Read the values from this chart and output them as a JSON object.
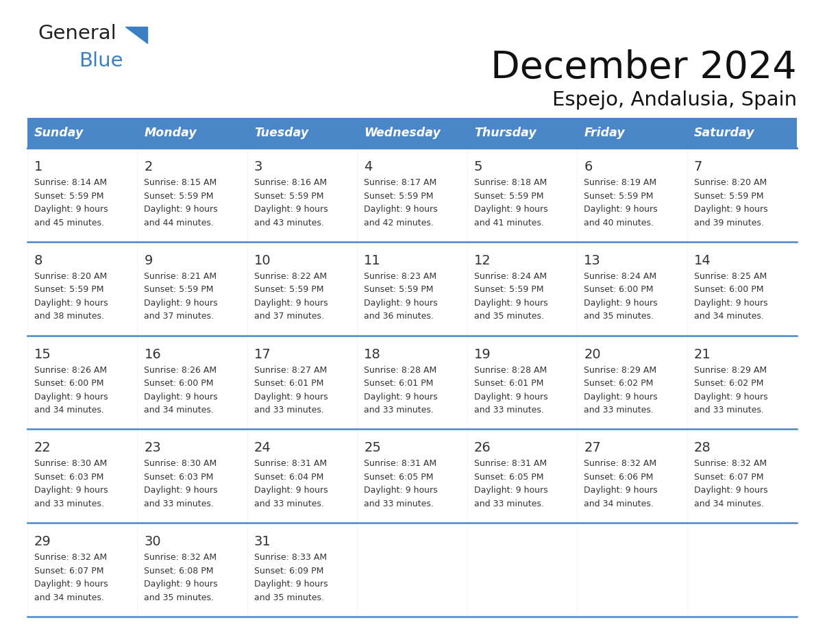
{
  "title": "December 2024",
  "subtitle": "Espejo, Andalusia, Spain",
  "header_color": "#4a86c8",
  "header_text_color": "#FFFFFF",
  "days_of_week": [
    "Sunday",
    "Monday",
    "Tuesday",
    "Wednesday",
    "Thursday",
    "Friday",
    "Saturday"
  ],
  "bg_color": "#FFFFFF",
  "cell_bg": "#f0f4f8",
  "grid_line_color": "#4a86c8",
  "text_color": "#333333",
  "calendar_data": [
    [
      {
        "day": 1,
        "sunrise": "8:14 AM",
        "sunset": "5:59 PM",
        "daylight": "9 hours",
        "daylight2": "and 45 minutes."
      },
      {
        "day": 2,
        "sunrise": "8:15 AM",
        "sunset": "5:59 PM",
        "daylight": "9 hours",
        "daylight2": "and 44 minutes."
      },
      {
        "day": 3,
        "sunrise": "8:16 AM",
        "sunset": "5:59 PM",
        "daylight": "9 hours",
        "daylight2": "and 43 minutes."
      },
      {
        "day": 4,
        "sunrise": "8:17 AM",
        "sunset": "5:59 PM",
        "daylight": "9 hours",
        "daylight2": "and 42 minutes."
      },
      {
        "day": 5,
        "sunrise": "8:18 AM",
        "sunset": "5:59 PM",
        "daylight": "9 hours",
        "daylight2": "and 41 minutes."
      },
      {
        "day": 6,
        "sunrise": "8:19 AM",
        "sunset": "5:59 PM",
        "daylight": "9 hours",
        "daylight2": "and 40 minutes."
      },
      {
        "day": 7,
        "sunrise": "8:20 AM",
        "sunset": "5:59 PM",
        "daylight": "9 hours",
        "daylight2": "and 39 minutes."
      }
    ],
    [
      {
        "day": 8,
        "sunrise": "8:20 AM",
        "sunset": "5:59 PM",
        "daylight": "9 hours",
        "daylight2": "and 38 minutes."
      },
      {
        "day": 9,
        "sunrise": "8:21 AM",
        "sunset": "5:59 PM",
        "daylight": "9 hours",
        "daylight2": "and 37 minutes."
      },
      {
        "day": 10,
        "sunrise": "8:22 AM",
        "sunset": "5:59 PM",
        "daylight": "9 hours",
        "daylight2": "and 37 minutes."
      },
      {
        "day": 11,
        "sunrise": "8:23 AM",
        "sunset": "5:59 PM",
        "daylight": "9 hours",
        "daylight2": "and 36 minutes."
      },
      {
        "day": 12,
        "sunrise": "8:24 AM",
        "sunset": "5:59 PM",
        "daylight": "9 hours",
        "daylight2": "and 35 minutes."
      },
      {
        "day": 13,
        "sunrise": "8:24 AM",
        "sunset": "6:00 PM",
        "daylight": "9 hours",
        "daylight2": "and 35 minutes."
      },
      {
        "day": 14,
        "sunrise": "8:25 AM",
        "sunset": "6:00 PM",
        "daylight": "9 hours",
        "daylight2": "and 34 minutes."
      }
    ],
    [
      {
        "day": 15,
        "sunrise": "8:26 AM",
        "sunset": "6:00 PM",
        "daylight": "9 hours",
        "daylight2": "and 34 minutes."
      },
      {
        "day": 16,
        "sunrise": "8:26 AM",
        "sunset": "6:00 PM",
        "daylight": "9 hours",
        "daylight2": "and 34 minutes."
      },
      {
        "day": 17,
        "sunrise": "8:27 AM",
        "sunset": "6:01 PM",
        "daylight": "9 hours",
        "daylight2": "and 33 minutes."
      },
      {
        "day": 18,
        "sunrise": "8:28 AM",
        "sunset": "6:01 PM",
        "daylight": "9 hours",
        "daylight2": "and 33 minutes."
      },
      {
        "day": 19,
        "sunrise": "8:28 AM",
        "sunset": "6:01 PM",
        "daylight": "9 hours",
        "daylight2": "and 33 minutes."
      },
      {
        "day": 20,
        "sunrise": "8:29 AM",
        "sunset": "6:02 PM",
        "daylight": "9 hours",
        "daylight2": "and 33 minutes."
      },
      {
        "day": 21,
        "sunrise": "8:29 AM",
        "sunset": "6:02 PM",
        "daylight": "9 hours",
        "daylight2": "and 33 minutes."
      }
    ],
    [
      {
        "day": 22,
        "sunrise": "8:30 AM",
        "sunset": "6:03 PM",
        "daylight": "9 hours",
        "daylight2": "and 33 minutes."
      },
      {
        "day": 23,
        "sunrise": "8:30 AM",
        "sunset": "6:03 PM",
        "daylight": "9 hours",
        "daylight2": "and 33 minutes."
      },
      {
        "day": 24,
        "sunrise": "8:31 AM",
        "sunset": "6:04 PM",
        "daylight": "9 hours",
        "daylight2": "and 33 minutes."
      },
      {
        "day": 25,
        "sunrise": "8:31 AM",
        "sunset": "6:05 PM",
        "daylight": "9 hours",
        "daylight2": "and 33 minutes."
      },
      {
        "day": 26,
        "sunrise": "8:31 AM",
        "sunset": "6:05 PM",
        "daylight": "9 hours",
        "daylight2": "and 33 minutes."
      },
      {
        "day": 27,
        "sunrise": "8:32 AM",
        "sunset": "6:06 PM",
        "daylight": "9 hours",
        "daylight2": "and 34 minutes."
      },
      {
        "day": 28,
        "sunrise": "8:32 AM",
        "sunset": "6:07 PM",
        "daylight": "9 hours",
        "daylight2": "and 34 minutes."
      }
    ],
    [
      {
        "day": 29,
        "sunrise": "8:32 AM",
        "sunset": "6:07 PM",
        "daylight": "9 hours",
        "daylight2": "and 34 minutes."
      },
      {
        "day": 30,
        "sunrise": "8:32 AM",
        "sunset": "6:08 PM",
        "daylight": "9 hours",
        "daylight2": "and 35 minutes."
      },
      {
        "day": 31,
        "sunrise": "8:33 AM",
        "sunset": "6:09 PM",
        "daylight": "9 hours",
        "daylight2": "and 35 minutes."
      },
      null,
      null,
      null,
      null
    ]
  ]
}
